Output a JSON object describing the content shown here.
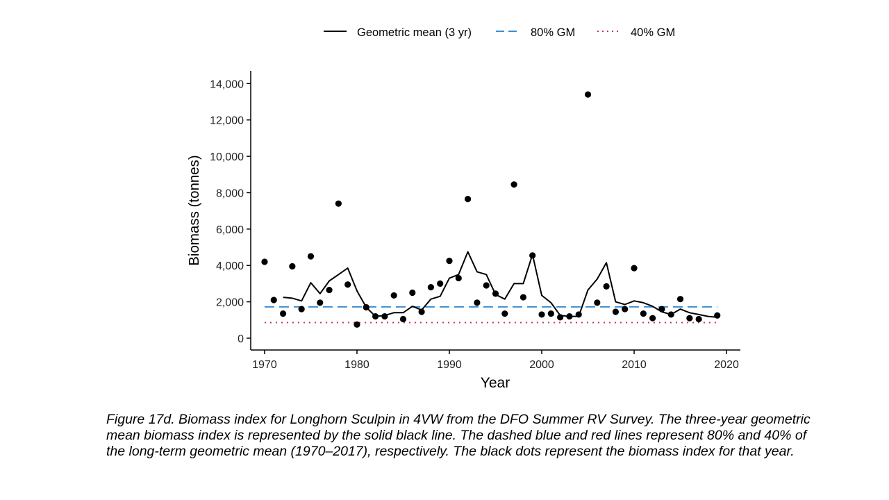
{
  "caption": "Figure 17d. Biomass index for Longhorn Sculpin in 4VW from the DFO Summer RV Survey. The three-year geometric mean biomass index is represented by the solid black line. The dashed blue and red lines represent 80% and 40% of the long-term geometric mean (1970–2017), respectively. The black dots represent the biomass index for that year.",
  "chart_data": {
    "type": "line",
    "xlabel": "Year",
    "ylabel": "Biomass (tonnes)",
    "xlim": [
      1968.5,
      2021.5
    ],
    "ylim": [
      -650,
      14700
    ],
    "x_ticks": [
      1970,
      1980,
      1990,
      2000,
      2010,
      2020
    ],
    "y_ticks": [
      0,
      2000,
      4000,
      6000,
      8000,
      10000,
      12000,
      14000
    ],
    "y_tick_labels": [
      "0",
      "2,000",
      "4,000",
      "6,000",
      "8,000",
      "10,000",
      "12,000",
      "14,000"
    ],
    "grid": false,
    "legend_position": "top",
    "legend": [
      {
        "label": "Geometric mean (3 yr)",
        "style": "solid",
        "color": "#000000"
      },
      {
        "label": "80% GM",
        "style": "dashed",
        "color": "#3a8fd6"
      },
      {
        "label": "40% GM",
        "style": "dotted",
        "color": "#c0394b"
      }
    ],
    "series": [
      {
        "name": "Geometric mean (3 yr)",
        "kind": "line",
        "color": "#000000",
        "x": [
          1972,
          1973,
          1974,
          1975,
          1976,
          1977,
          1978,
          1979,
          1980,
          1981,
          1982,
          1983,
          1984,
          1985,
          1986,
          1987,
          1988,
          1989,
          1990,
          1991,
          1992,
          1993,
          1994,
          1995,
          1996,
          1997,
          1998,
          1999,
          2000,
          2001,
          2002,
          2003,
          2004,
          2005,
          2006,
          2007,
          2008,
          2009,
          2010,
          2011,
          2012,
          2013,
          2014,
          2015,
          2016,
          2017,
          2018,
          2019
        ],
        "y": [
          2250,
          2200,
          2050,
          3050,
          2450,
          3150,
          3500,
          3850,
          2600,
          1700,
          1200,
          1250,
          1400,
          1400,
          1750,
          1550,
          2150,
          2300,
          3300,
          3500,
          4750,
          3650,
          3500,
          2400,
          2150,
          3000,
          3000,
          4600,
          2350,
          1950,
          1250,
          1200,
          1200,
          2650,
          3250,
          4150,
          2000,
          1850,
          2050,
          1950,
          1750,
          1450,
          1300,
          1600,
          1400,
          1300,
          1200,
          1150
        ]
      },
      {
        "name": "Biomass index",
        "kind": "scatter",
        "color": "#000000",
        "x": [
          1970,
          1971,
          1972,
          1973,
          1974,
          1975,
          1976,
          1977,
          1978,
          1979,
          1980,
          1981,
          1982,
          1983,
          1984,
          1985,
          1986,
          1987,
          1988,
          1989,
          1990,
          1991,
          1992,
          1993,
          1994,
          1995,
          1996,
          1997,
          1998,
          1999,
          2000,
          2001,
          2002,
          2003,
          2004,
          2005,
          2006,
          2007,
          2008,
          2009,
          2010,
          2011,
          2012,
          2013,
          2014,
          2015,
          2016,
          2017,
          2019
        ],
        "y": [
          4200,
          2100,
          1350,
          3950,
          1600,
          4500,
          1950,
          2650,
          7400,
          2950,
          750,
          1700,
          1200,
          1200,
          2350,
          1050,
          2500,
          1450,
          2800,
          3000,
          4250,
          3300,
          7650,
          1950,
          2900,
          2450,
          1350,
          8450,
          2250,
          4550,
          1300,
          1350,
          1150,
          1200,
          1300,
          13400,
          1950,
          2850,
          1450,
          1600,
          3850,
          1350,
          1100,
          1600,
          1300,
          2150,
          1100,
          1050,
          1250
        ]
      },
      {
        "name": "80% GM",
        "kind": "hline",
        "color": "#3a8fd6",
        "x": [
          1970,
          2019
        ],
        "y": [
          1720,
          1720
        ]
      },
      {
        "name": "40% GM",
        "kind": "hline",
        "color": "#c0394b",
        "x": [
          1970,
          2019
        ],
        "y": [
          860,
          860
        ]
      }
    ]
  }
}
